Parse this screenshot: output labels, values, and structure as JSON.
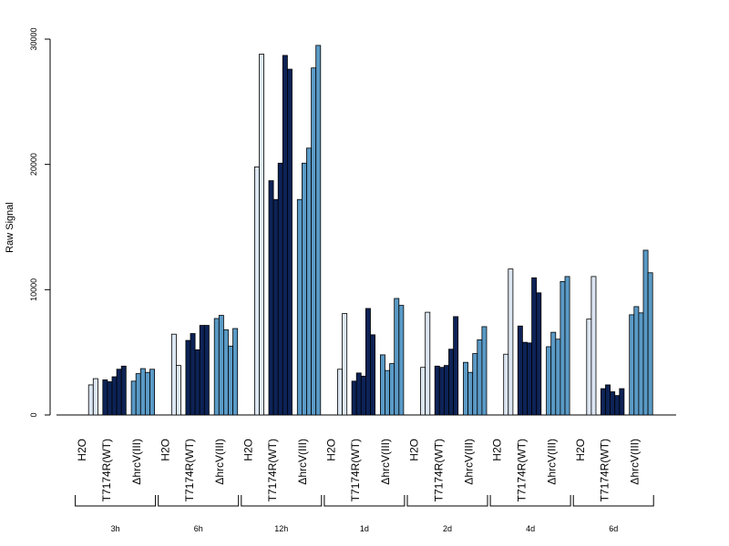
{
  "chart_data": {
    "type": "bar",
    "title": "",
    "xlabel": "",
    "ylabel": "Raw Signal",
    "ylim": [
      0,
      30000
    ],
    "yticks": [
      0,
      10000,
      20000,
      30000
    ],
    "grid": false,
    "timepoints": [
      "3h",
      "6h",
      "12h",
      "1d",
      "2d",
      "4d",
      "6d"
    ],
    "groups": [
      "H2O",
      "T7174R(WT)",
      "ΔhrcV(III)"
    ],
    "colors": [
      "#dce6f2",
      "#0d2357",
      "#5a9ac6"
    ],
    "values": [
      [
        [
          2400,
          2900
        ],
        [
          2800,
          2650,
          3050,
          3650,
          3900
        ],
        [
          2700,
          3300,
          3700,
          3400,
          3650
        ]
      ],
      [
        [
          6450,
          3950
        ],
        [
          5950,
          6500,
          5200,
          7150,
          7150
        ],
        [
          7700,
          7950,
          6800,
          5500,
          6900
        ]
      ],
      [
        [
          19800,
          28800
        ],
        [
          18700,
          17200,
          20100,
          28700,
          27600
        ],
        [
          17200,
          20100,
          21300,
          27700,
          29500
        ]
      ],
      [
        [
          3650,
          8100
        ],
        [
          2700,
          3350,
          3100,
          8500,
          6400
        ],
        [
          4800,
          3550,
          4100,
          9300,
          8750
        ]
      ],
      [
        [
          3800,
          8200
        ],
        [
          3900,
          3800,
          3950,
          5250,
          7850
        ],
        [
          4200,
          3400,
          4900,
          6000,
          7050
        ]
      ],
      [
        [
          4850,
          11650
        ],
        [
          7100,
          5800,
          5750,
          10950,
          9750
        ],
        [
          5450,
          6600,
          6050,
          10650,
          11050
        ]
      ],
      [
        [
          7650,
          11050
        ],
        [
          2100,
          2400,
          1850,
          1550,
          2100
        ],
        [
          8000,
          8650,
          8150,
          13150,
          11350
        ]
      ]
    ]
  }
}
